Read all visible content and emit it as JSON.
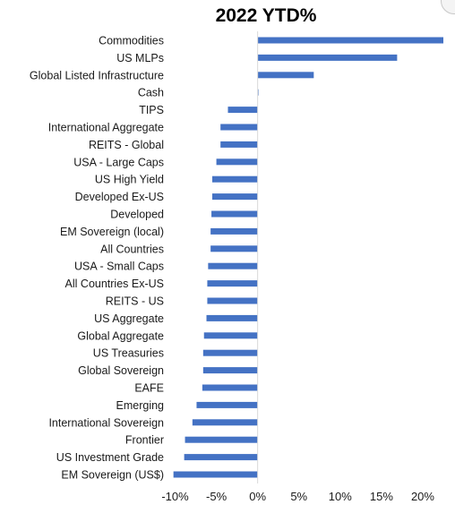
{
  "chart_data": {
    "type": "bar",
    "orientation": "horizontal",
    "title": "2022 YTD%",
    "xlabel": "",
    "ylabel": "",
    "categories": [
      "Commodities",
      "US MLPs",
      "Global Listed Infrastructure",
      "Cash",
      "TIPS",
      "International Aggregate",
      "REITS - Global",
      "USA - Large Caps",
      "US High Yield",
      "Developed Ex-US",
      "Developed",
      "EM Sovereign (local)",
      "All Countries",
      "USA - Small Caps",
      "All Countries Ex-US",
      "REITS - US",
      "US Aggregate",
      "Global Aggregate",
      "US Treasuries",
      "Global Sovereign",
      "EAFE",
      "Emerging",
      "International Sovereign",
      "Frontier",
      "US Investment Grade",
      "EM Sovereign (US$)"
    ],
    "values": [
      22.5,
      16.9,
      6.8,
      0.1,
      -3.6,
      -4.5,
      -4.5,
      -5.0,
      -5.5,
      -5.5,
      -5.6,
      -5.7,
      -5.7,
      -6.0,
      -6.1,
      -6.1,
      -6.2,
      -6.5,
      -6.6,
      -6.6,
      -6.7,
      -7.4,
      -7.9,
      -8.8,
      -8.9,
      -10.2
    ],
    "xlim": [
      -10,
      22.5
    ],
    "x_ticks": [
      -10,
      -5,
      0,
      5,
      10,
      15,
      20
    ],
    "x_tick_labels": [
      "-10%",
      "-5%",
      "0%",
      "5%",
      "10%",
      "15%",
      "20%"
    ],
    "bar_color": "#4472c4",
    "grid": false,
    "legend": "none"
  }
}
